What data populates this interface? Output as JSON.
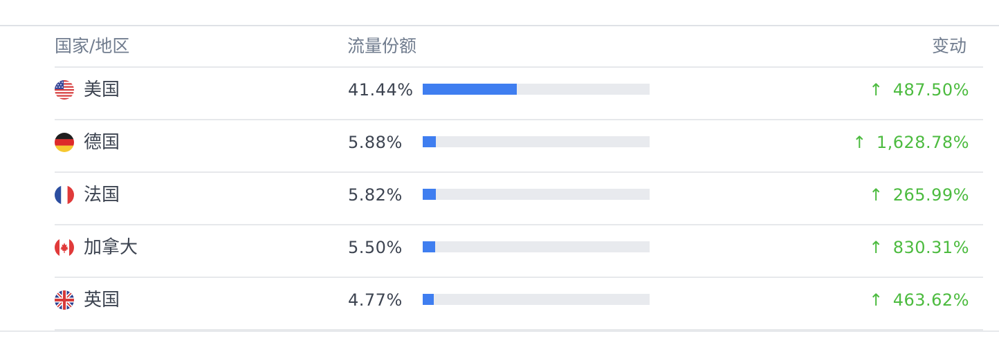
{
  "table": {
    "headers": {
      "country": "国家/地区",
      "share": "流量份额",
      "change": "变动"
    },
    "rows": [
      {
        "flag_icon": "us-flag-icon",
        "country": "美国",
        "share": "41.44%",
        "share_value": 41.44,
        "arrow": "↑",
        "change": "487.50%"
      },
      {
        "flag_icon": "de-flag-icon",
        "country": "德国",
        "share": "5.88%",
        "share_value": 5.88,
        "arrow": "↑",
        "change": "1,628.78%"
      },
      {
        "flag_icon": "fr-flag-icon",
        "country": "法国",
        "share": "5.82%",
        "share_value": 5.82,
        "arrow": "↑",
        "change": "265.99%"
      },
      {
        "flag_icon": "ca-flag-icon",
        "country": "加拿大",
        "share": "5.50%",
        "share_value": 5.5,
        "arrow": "↑",
        "change": "830.31%"
      },
      {
        "flag_icon": "gb-flag-icon",
        "country": "英国",
        "share": "4.77%",
        "share_value": 4.77,
        "arrow": "↑",
        "change": "463.62%"
      }
    ]
  },
  "colors": {
    "bar_fill": "#3f7ef0",
    "bar_track": "#e8eaee",
    "change_up": "#4cbb3f",
    "header_text": "#707c8e",
    "body_text": "#3d4451"
  }
}
